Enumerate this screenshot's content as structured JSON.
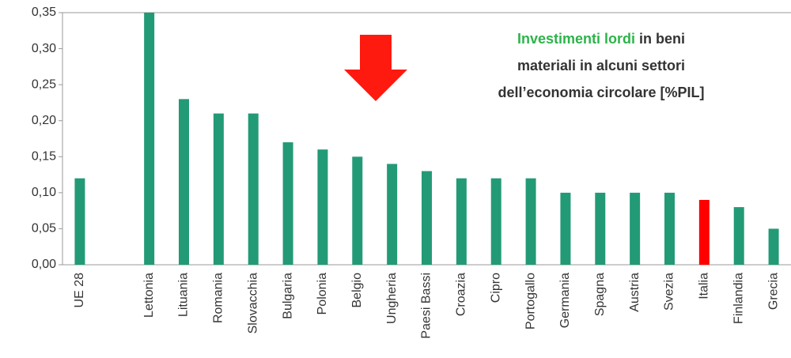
{
  "chart_data": {
    "type": "bar",
    "title": {
      "highlight": "Investimenti lordi",
      "lines": [
        "in beni",
        "materiali in alcuni settori",
        "dell’economia circolare [%PIL]"
      ]
    },
    "categories": [
      "UE 28",
      null,
      "Lettonia",
      "Lituania",
      "Romania",
      "Slovacchia",
      "Bulgaria",
      "Polonia",
      "Belgio",
      "Ungheria",
      "Paesi Bassi",
      "Croazia",
      "Cipro",
      "Portogallo",
      "Germania",
      "Spagna",
      "Austria",
      "Svezia",
      "Italia",
      "Finlandia",
      "Grecia"
    ],
    "values": [
      0.12,
      null,
      0.35,
      0.23,
      0.21,
      0.21,
      0.17,
      0.16,
      0.15,
      0.14,
      0.13,
      0.12,
      0.12,
      0.12,
      0.1,
      0.1,
      0.1,
      0.1,
      0.09,
      0.08,
      0.05
    ],
    "colors": [
      "#239a76",
      null,
      "#239a76",
      "#239a76",
      "#239a76",
      "#239a76",
      "#239a76",
      "#239a76",
      "#239a76",
      "#239a76",
      "#239a76",
      "#239a76",
      "#239a76",
      "#239a76",
      "#239a76",
      "#239a76",
      "#239a76",
      "#239a76",
      "#ff0000",
      "#239a76",
      "#239a76"
    ],
    "title_highlight_color": "#2db34a",
    "ylim": [
      0,
      0.35
    ],
    "yticks": [
      {
        "value": 0,
        "label": "0,00"
      },
      {
        "value": 0.05,
        "label": "0,05"
      },
      {
        "value": 0.1,
        "label": "0,10"
      },
      {
        "value": 0.15,
        "label": "0,15"
      },
      {
        "value": 0.2,
        "label": "0,20"
      },
      {
        "value": 0.25,
        "label": "0,25"
      },
      {
        "value": 0.3,
        "label": "0,30"
      },
      {
        "value": 0.35,
        "label": "0,35"
      }
    ],
    "grid": false
  }
}
